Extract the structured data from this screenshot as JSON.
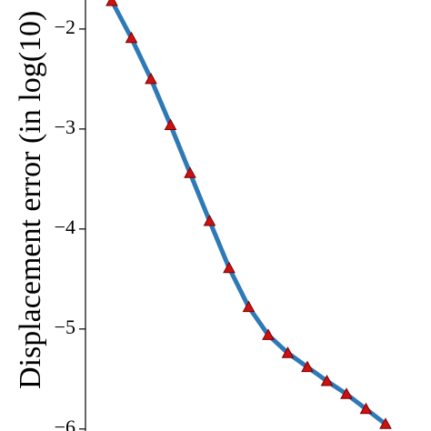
{
  "chart_data": {
    "type": "line",
    "y_label": "Displacement error (in log(10)",
    "categories": [
      null,
      null,
      null,
      null,
      null,
      null,
      null,
      null,
      null,
      null,
      null,
      null,
      null,
      null,
      null
    ],
    "series": [
      {
        "color": "#2e7ab6",
        "marker_color": "#cc1111",
        "values": [
          -1.72,
          -2.09,
          -2.5,
          -2.96,
          -3.44,
          -3.92,
          -4.39,
          -4.78,
          -5.06,
          -5.24,
          -5.38,
          -5.52,
          -5.65,
          -5.8,
          -5.95
        ]
      }
    ],
    "ylim": [
      -6.02,
      -1.71
    ],
    "yticks": [
      {
        "value": -2,
        "label": "−2"
      },
      {
        "value": -3,
        "label": "−3"
      },
      {
        "value": -4,
        "label": "−4"
      },
      {
        "value": -5,
        "label": "−5"
      },
      {
        "value": -6,
        "label": "−6"
      }
    ]
  }
}
